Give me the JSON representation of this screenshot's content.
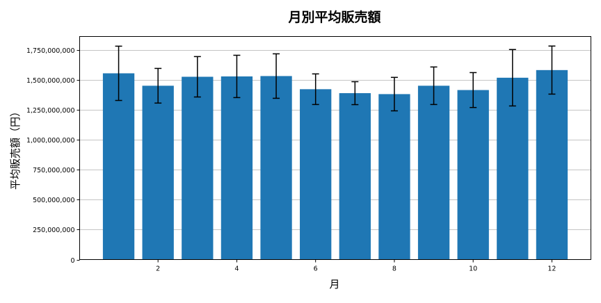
{
  "chart_data": {
    "type": "bar",
    "title": "月別平均販売額",
    "xlabel": "月",
    "ylabel": "平均販売額（円）",
    "categories": [
      1,
      2,
      3,
      4,
      5,
      6,
      7,
      8,
      9,
      10,
      11,
      12
    ],
    "values": [
      1558000000,
      1454000000,
      1529000000,
      1532000000,
      1535000000,
      1425000000,
      1392000000,
      1384000000,
      1454000000,
      1418000000,
      1521000000,
      1585000000
    ],
    "yerr": [
      227000000,
      145000000,
      169000000,
      177000000,
      186000000,
      128000000,
      96000000,
      140000000,
      157000000,
      146000000,
      236000000,
      201000000
    ],
    "xticks": [
      2,
      4,
      6,
      8,
      10,
      12
    ],
    "yticks": [
      0,
      250000000,
      500000000,
      750000000,
      1000000000,
      1250000000,
      1500000000,
      1750000000
    ],
    "ytick_labels": [
      "0",
      "250,000,000",
      "500,000,000",
      "750,000,000",
      "1,000,000,000",
      "1,250,000,000",
      "1,500,000,000",
      "1,750,000,000"
    ],
    "xlim": [
      0.01,
      12.99
    ],
    "ylim": [
      0,
      1866000000
    ],
    "grid": "y",
    "bar_color": "#1f77b4",
    "error_color": "#000000"
  }
}
